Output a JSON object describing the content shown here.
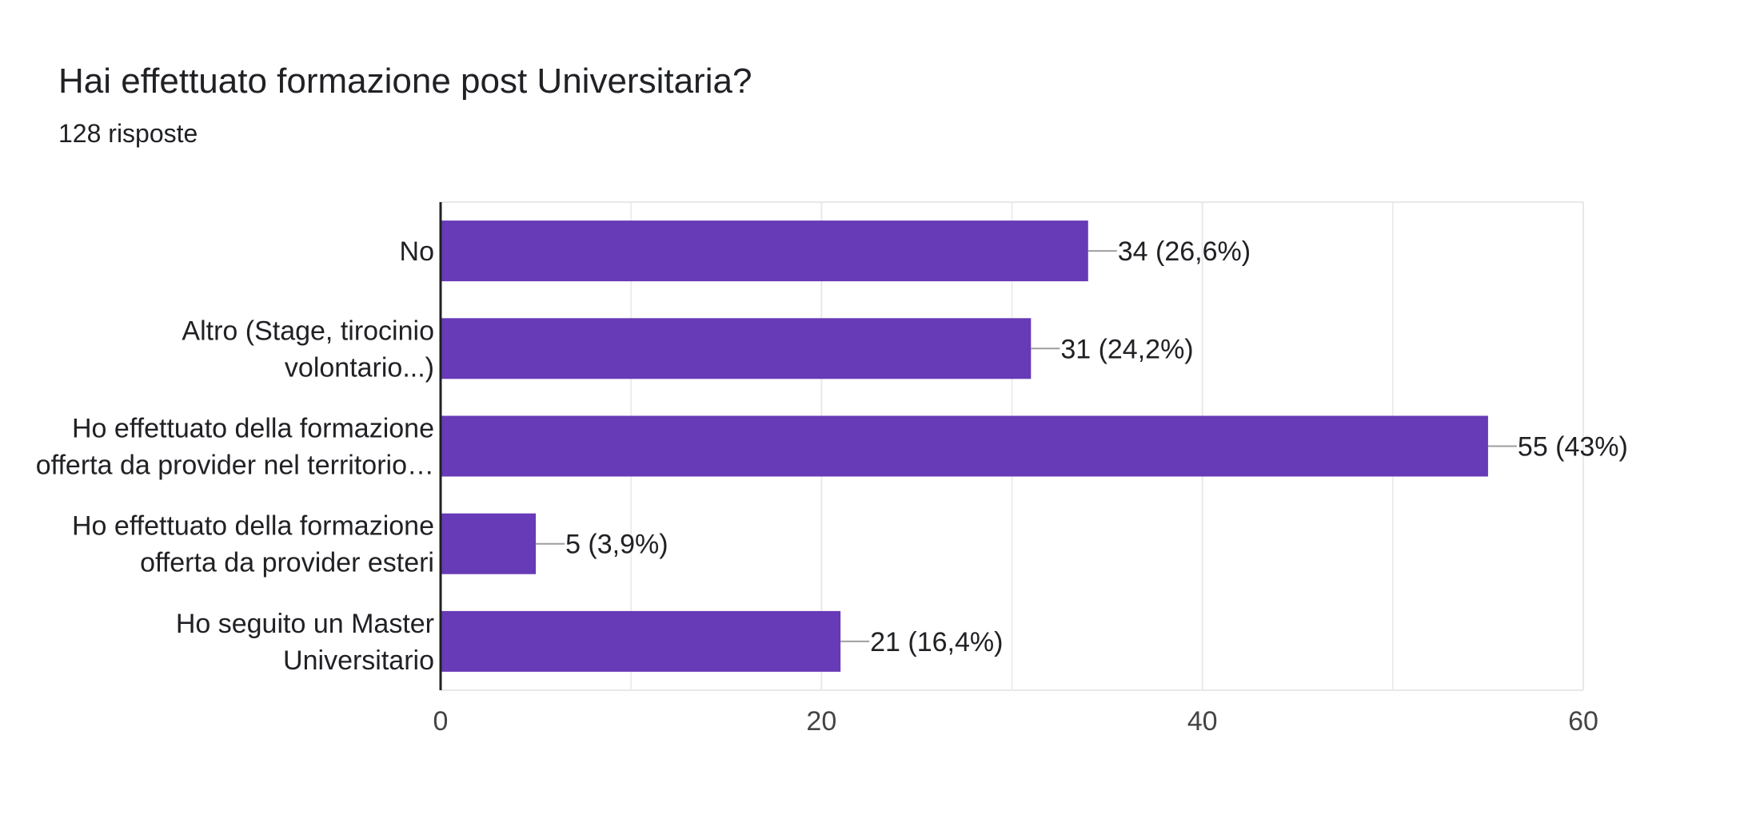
{
  "header": {
    "title": "Hai effettuato formazione post Universitaria?",
    "subtitle": "128 risposte"
  },
  "colors": {
    "bar": "#673ab7",
    "axis": "#202124",
    "grid": "#e8e8e8",
    "leader": "#9e9e9e",
    "text": "#202124",
    "tick_text": "#444444"
  },
  "chart_data": {
    "type": "bar",
    "orientation": "horizontal",
    "title": "Hai effettuato formazione post Universitaria?",
    "subtitle": "128 risposte",
    "categories": [
      [
        "No"
      ],
      [
        "Altro (Stage, tirocinio",
        "volontario...)"
      ],
      [
        "Ho effettuato della formazione",
        "offerta da provider nel territorio…"
      ],
      [
        "Ho effettuato della formazione",
        "offerta da provider esteri"
      ],
      [
        "Ho seguito un Master",
        "Universitario"
      ]
    ],
    "values": [
      34,
      31,
      55,
      5,
      21
    ],
    "data_labels": [
      "34 (26,6%)",
      "31 (24,2%)",
      "55 (43%)",
      "5 (3,9%)",
      "21 (16,4%)"
    ],
    "xlim": [
      0,
      60
    ],
    "x_ticks": [
      0,
      20,
      40,
      60
    ],
    "x_tick_labels": [
      "0",
      "20",
      "40",
      "60"
    ],
    "grid": true,
    "legend": "none"
  }
}
